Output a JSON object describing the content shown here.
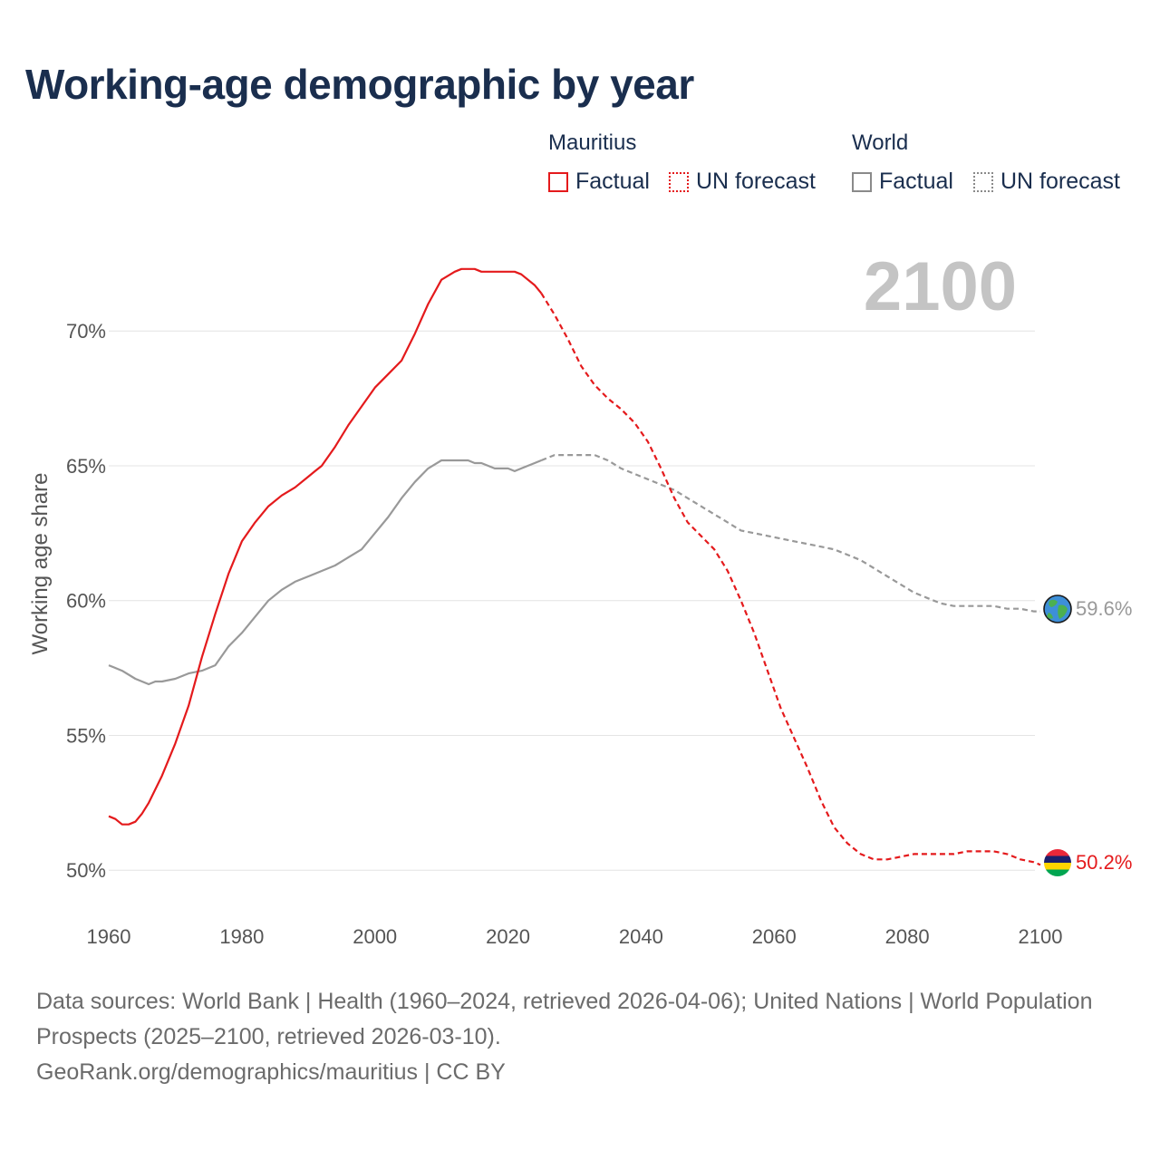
{
  "title": "Working-age demographic by year",
  "legend": {
    "groups": [
      {
        "name": "Mauritius",
        "items": [
          "Factual",
          "UN forecast"
        ],
        "color": "#e41a1c"
      },
      {
        "name": "World",
        "items": [
          "Factual",
          "UN forecast"
        ],
        "color": "#999999"
      }
    ]
  },
  "footer": {
    "line1": "Data sources: World Bank | Health (1960–2024, retrieved 2026-04-06); United Nations | World Population Prospects (2025–2100, retrieved 2026-03-10).",
    "line2": "GeoRank.org/demographics/mauritius | CC BY"
  },
  "chart_data": {
    "type": "line",
    "year_overlay": "2100",
    "ylabel": "Working age share",
    "xlabel": "",
    "xlim": [
      1960,
      2103
    ],
    "ylim": [
      49.0,
      73.2
    ],
    "x_ticks": [
      1960,
      1980,
      2000,
      2020,
      2040,
      2060,
      2080,
      2100
    ],
    "y_ticks": [
      50,
      55,
      60,
      65,
      70
    ],
    "y_tick_labels": [
      "50%",
      "55%",
      "60%",
      "65%",
      "70%"
    ],
    "grid": true,
    "series": [
      {
        "name": "Mauritius",
        "color": "#e41a1c",
        "icon": "mauritius-flag-icon",
        "end_label": "50.2%",
        "factual": {
          "x": [
            1960,
            1961,
            1962,
            1963,
            1964,
            1965,
            1966,
            1968,
            1970,
            1972,
            1974,
            1976,
            1978,
            1980,
            1982,
            1984,
            1986,
            1988,
            1990,
            1991,
            1992,
            1994,
            1996,
            1998,
            2000,
            2002,
            2004,
            2006,
            2008,
            2010,
            2012,
            2013,
            2014,
            2015,
            2016,
            2018,
            2020,
            2021,
            2022,
            2024,
            2025
          ],
          "y": [
            52.0,
            51.9,
            51.7,
            51.7,
            51.8,
            52.1,
            52.5,
            53.5,
            54.7,
            56.1,
            57.9,
            59.5,
            61.0,
            62.2,
            62.9,
            63.5,
            63.9,
            64.2,
            64.6,
            64.8,
            65.0,
            65.7,
            66.5,
            67.2,
            67.9,
            68.4,
            68.9,
            69.9,
            71.0,
            71.9,
            72.2,
            72.3,
            72.3,
            72.3,
            72.2,
            72.2,
            72.2,
            72.2,
            72.1,
            71.7,
            71.4
          ]
        },
        "forecast": {
          "x": [
            2025,
            2027,
            2029,
            2031,
            2033,
            2035,
            2037,
            2039,
            2041,
            2043,
            2045,
            2047,
            2049,
            2051,
            2053,
            2055,
            2057,
            2059,
            2061,
            2063,
            2065,
            2067,
            2069,
            2071,
            2073,
            2075,
            2077,
            2079,
            2081,
            2083,
            2085,
            2087,
            2089,
            2091,
            2093,
            2095,
            2097,
            2099,
            2100
          ],
          "y": [
            71.4,
            70.6,
            69.7,
            68.7,
            68.0,
            67.5,
            67.1,
            66.6,
            65.9,
            64.9,
            63.8,
            62.9,
            62.4,
            61.9,
            61.1,
            60.0,
            58.8,
            57.4,
            56.0,
            54.9,
            53.8,
            52.6,
            51.6,
            51.0,
            50.6,
            50.4,
            50.4,
            50.5,
            50.6,
            50.6,
            50.6,
            50.6,
            50.7,
            50.7,
            50.7,
            50.6,
            50.4,
            50.3,
            50.2
          ]
        }
      },
      {
        "name": "World",
        "color": "#999999",
        "icon": "globe-icon",
        "end_label": "59.6%",
        "factual": {
          "x": [
            1960,
            1962,
            1964,
            1966,
            1967,
            1968,
            1970,
            1972,
            1974,
            1976,
            1978,
            1980,
            1982,
            1984,
            1986,
            1988,
            1990,
            1992,
            1994,
            1996,
            1998,
            2000,
            2002,
            2004,
            2006,
            2008,
            2010,
            2012,
            2014,
            2015,
            2016,
            2018,
            2020,
            2021,
            2022,
            2024,
            2025
          ],
          "y": [
            57.6,
            57.4,
            57.1,
            56.9,
            57.0,
            57.0,
            57.1,
            57.3,
            57.4,
            57.6,
            58.3,
            58.8,
            59.4,
            60.0,
            60.4,
            60.7,
            60.9,
            61.1,
            61.3,
            61.6,
            61.9,
            62.5,
            63.1,
            63.8,
            64.4,
            64.9,
            65.2,
            65.2,
            65.2,
            65.1,
            65.1,
            64.9,
            64.9,
            64.8,
            64.9,
            65.1,
            65.2
          ]
        },
        "forecast": {
          "x": [
            2025,
            2027,
            2029,
            2031,
            2033,
            2035,
            2037,
            2039,
            2041,
            2043,
            2045,
            2047,
            2049,
            2051,
            2053,
            2055,
            2057,
            2059,
            2061,
            2063,
            2065,
            2067,
            2069,
            2071,
            2073,
            2075,
            2077,
            2079,
            2081,
            2083,
            2085,
            2087,
            2089,
            2091,
            2093,
            2095,
            2097,
            2099,
            2100
          ],
          "y": [
            65.2,
            65.4,
            65.4,
            65.4,
            65.4,
            65.2,
            64.9,
            64.7,
            64.5,
            64.3,
            64.1,
            63.8,
            63.5,
            63.2,
            62.9,
            62.6,
            62.5,
            62.4,
            62.3,
            62.2,
            62.1,
            62.0,
            61.9,
            61.7,
            61.5,
            61.2,
            60.9,
            60.6,
            60.3,
            60.1,
            59.9,
            59.8,
            59.8,
            59.8,
            59.8,
            59.7,
            59.7,
            59.6,
            59.6
          ]
        }
      }
    ]
  }
}
